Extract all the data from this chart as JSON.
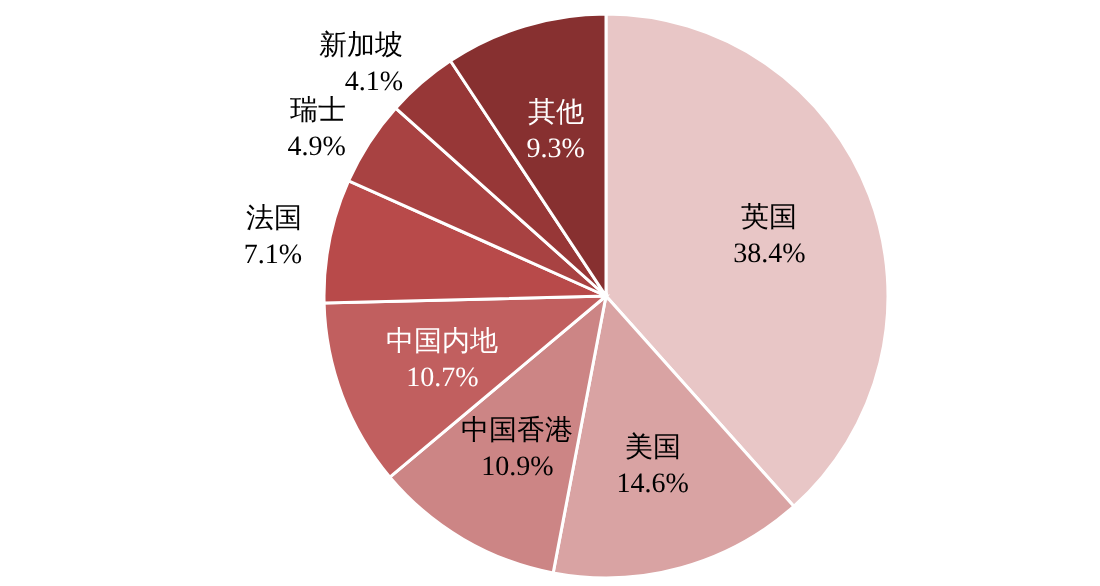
{
  "chart_data": {
    "type": "pie",
    "categories": [
      "英国",
      "美国",
      "中国香港",
      "中国内地",
      "法国",
      "瑞士",
      "新加坡",
      "其他"
    ],
    "values": [
      38.4,
      14.6,
      10.9,
      10.7,
      7.1,
      4.9,
      4.1,
      9.3
    ],
    "colors": [
      "#e8c6c6",
      "#d9a3a3",
      "#cc8585",
      "#c15f5f",
      "#b84a4a",
      "#a84242",
      "#973737",
      "#873030"
    ],
    "value_labels": [
      "38.4%",
      "14.6%",
      "10.9%",
      "10.7%",
      "7.1%",
      "4.9%",
      "4.1%",
      "9.3%"
    ]
  }
}
